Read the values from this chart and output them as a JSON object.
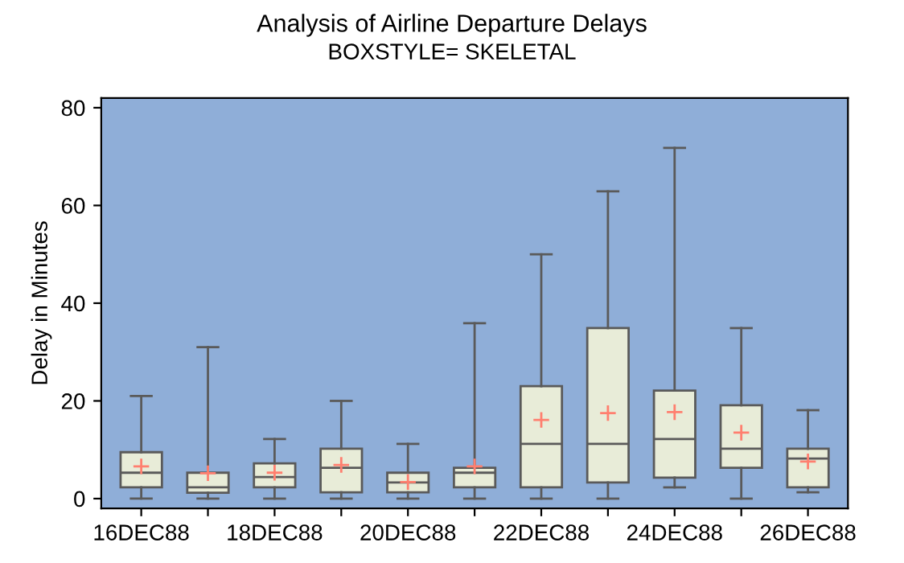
{
  "chart_data": {
    "type": "box",
    "title": "Analysis of Airline Departure Delays",
    "subtitle": "BOXSTYLE= SKELETAL",
    "ylabel": "Delay in Minutes",
    "categories": [
      "16DEC88",
      null,
      "18DEC88",
      null,
      "20DEC88",
      null,
      "22DEC88",
      null,
      "24DEC88",
      null,
      "26DEC88"
    ],
    "ylim": [
      -2,
      82
    ],
    "yticks": [
      0,
      20,
      40,
      60,
      80
    ],
    "grid": false,
    "legend": false,
    "series": [
      {
        "color": "#e8ecd8",
        "boxes": [
          {
            "low": 0,
            "q1": 2.3,
            "median": 5.3,
            "q3": 9.5,
            "high": 21,
            "mean": 6.6
          },
          {
            "low": 0,
            "q1": 1.2,
            "median": 2.3,
            "q3": 5.3,
            "high": 31,
            "mean": 5.2
          },
          {
            "low": 0,
            "q1": 2.3,
            "median": 4.4,
            "q3": 7.2,
            "high": 12.2,
            "mean": 5.3
          },
          {
            "low": 0,
            "q1": 1.3,
            "median": 6.3,
            "q3": 10.2,
            "high": 20,
            "mean": 6.9
          },
          {
            "low": 0,
            "q1": 1.3,
            "median": 3.3,
            "q3": 5.3,
            "high": 11.2,
            "mean": 3.4
          },
          {
            "low": 0,
            "q1": 2.3,
            "median": 5.3,
            "q3": 6.3,
            "high": 35.9,
            "mean": 6.6
          },
          {
            "low": 0,
            "q1": 2.3,
            "median": 11.2,
            "q3": 23,
            "high": 50,
            "mean": 16.1
          },
          {
            "low": 0,
            "q1": 3.3,
            "median": 11.2,
            "q3": 34.9,
            "high": 62.9,
            "mean": 17.5
          },
          {
            "low": 2.3,
            "q1": 4.3,
            "median": 12.2,
            "q3": 22.1,
            "high": 71.8,
            "mean": 17.7
          },
          {
            "low": 0,
            "q1": 6.3,
            "median": 10.2,
            "q3": 19.1,
            "high": 34.9,
            "mean": 13.5
          },
          {
            "low": 1.3,
            "q1": 2.3,
            "median": 8.2,
            "q3": 10.2,
            "high": 18.1,
            "mean": 7.6
          }
        ]
      }
    ]
  }
}
